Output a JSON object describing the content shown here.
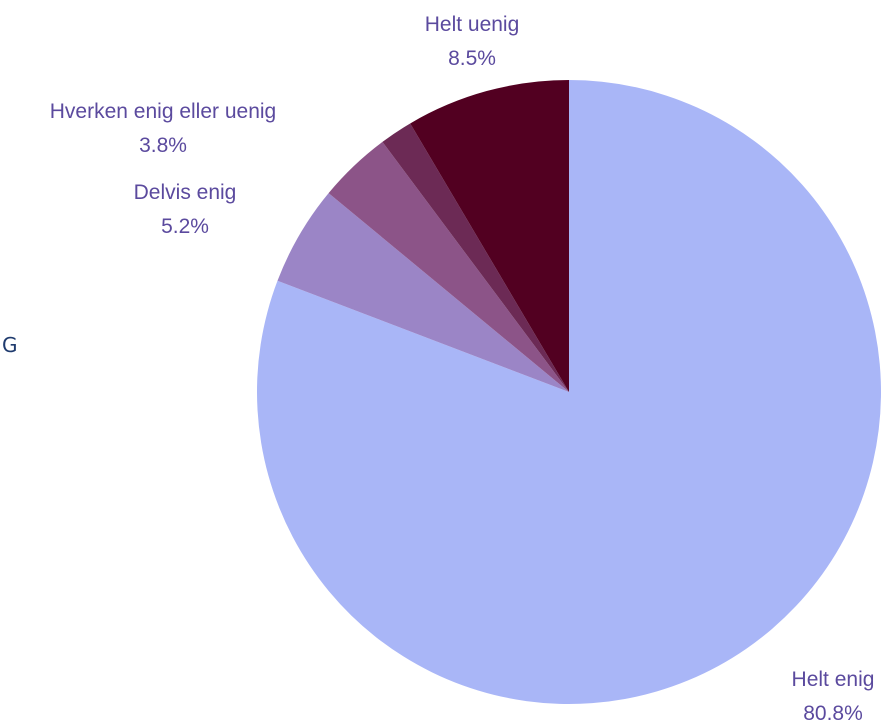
{
  "chart_data": {
    "type": "pie",
    "title": "",
    "slices": [
      {
        "label": "Helt enig",
        "value": 80.8,
        "value_label": "80.8%",
        "color": "#a9b6f7"
      },
      {
        "label": "Delvis enig",
        "value": 5.2,
        "value_label": "5.2%",
        "color": "#9b85c6"
      },
      {
        "label": "Hverken enig eller uenig",
        "value": 3.8,
        "value_label": "3.8%",
        "color": "#8c5488"
      },
      {
        "label": "",
        "value": 1.7,
        "value_label": "",
        "color": "#6c2a55"
      },
      {
        "label": "Helt uenig",
        "value": 8.5,
        "value_label": "8.5%",
        "color": "#520021"
      }
    ],
    "start_angle": "12 o'clock",
    "direction": "clockwise",
    "label_color": "#5b4a9e"
  },
  "stray_text": "G"
}
